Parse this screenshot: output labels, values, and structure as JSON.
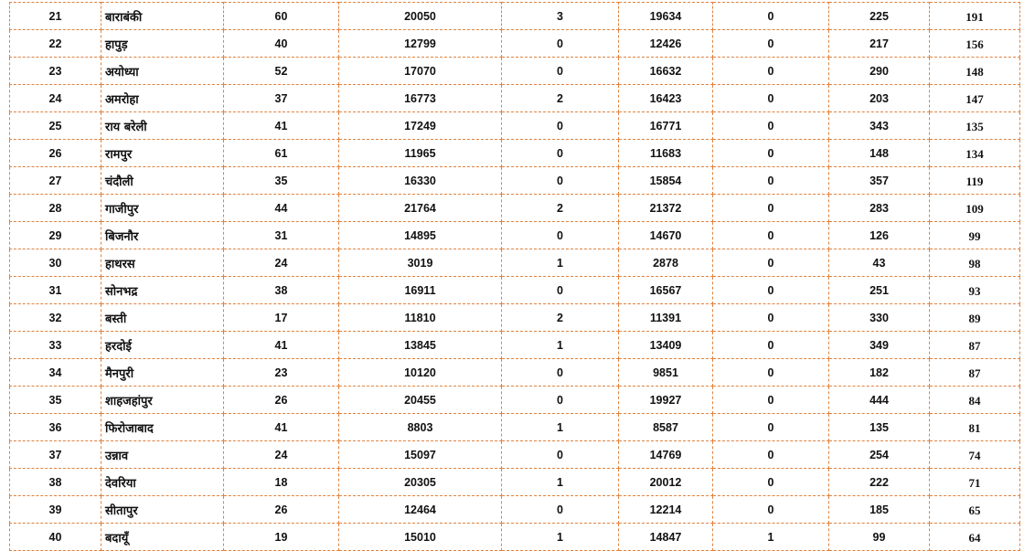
{
  "border_color": "#e0823e",
  "rows": [
    [
      "21",
      "बाराबंकी",
      "60",
      "20050",
      "3",
      "19634",
      "0",
      "225",
      "191"
    ],
    [
      "22",
      "हापुड़",
      "40",
      "12799",
      "0",
      "12426",
      "0",
      "217",
      "156"
    ],
    [
      "23",
      "अयोध्या",
      "52",
      "17070",
      "0",
      "16632",
      "0",
      "290",
      "148"
    ],
    [
      "24",
      "अमरोहा",
      "37",
      "16773",
      "2",
      "16423",
      "0",
      "203",
      "147"
    ],
    [
      "25",
      "राय बरेली",
      "41",
      "17249",
      "0",
      "16771",
      "0",
      "343",
      "135"
    ],
    [
      "26",
      "रामपुर",
      "61",
      "11965",
      "0",
      "11683",
      "0",
      "148",
      "134"
    ],
    [
      "27",
      "चंदौली",
      "35",
      "16330",
      "0",
      "15854",
      "0",
      "357",
      "119"
    ],
    [
      "28",
      "गाजीपुर",
      "44",
      "21764",
      "2",
      "21372",
      "0",
      "283",
      "109"
    ],
    [
      "29",
      "बिजनौर",
      "31",
      "14895",
      "0",
      "14670",
      "0",
      "126",
      "99"
    ],
    [
      "30",
      "हाथरस",
      "24",
      "3019",
      "1",
      "2878",
      "0",
      "43",
      "98"
    ],
    [
      "31",
      "सोनभद्र",
      "38",
      "16911",
      "0",
      "16567",
      "0",
      "251",
      "93"
    ],
    [
      "32",
      "बस्ती",
      "17",
      "11810",
      "2",
      "11391",
      "0",
      "330",
      "89"
    ],
    [
      "33",
      "हरदोई",
      "41",
      "13845",
      "1",
      "13409",
      "0",
      "349",
      "87"
    ],
    [
      "34",
      "मैनपुरी",
      "23",
      "10120",
      "0",
      "9851",
      "0",
      "182",
      "87"
    ],
    [
      "35",
      "शाहजहांपुर",
      "26",
      "20455",
      "0",
      "19927",
      "0",
      "444",
      "84"
    ],
    [
      "36",
      "फिरोजाबाद",
      "41",
      "8803",
      "1",
      "8587",
      "0",
      "135",
      "81"
    ],
    [
      "37",
      "उन्नाव",
      "24",
      "15097",
      "0",
      "14769",
      "0",
      "254",
      "74"
    ],
    [
      "38",
      "देवरिया",
      "18",
      "20305",
      "1",
      "20012",
      "0",
      "222",
      "71"
    ],
    [
      "39",
      "सीतापुर",
      "26",
      "12464",
      "0",
      "12214",
      "0",
      "185",
      "65"
    ],
    [
      "40",
      "बदायूँ",
      "19",
      "15010",
      "1",
      "14847",
      "1",
      "99",
      "64"
    ]
  ]
}
